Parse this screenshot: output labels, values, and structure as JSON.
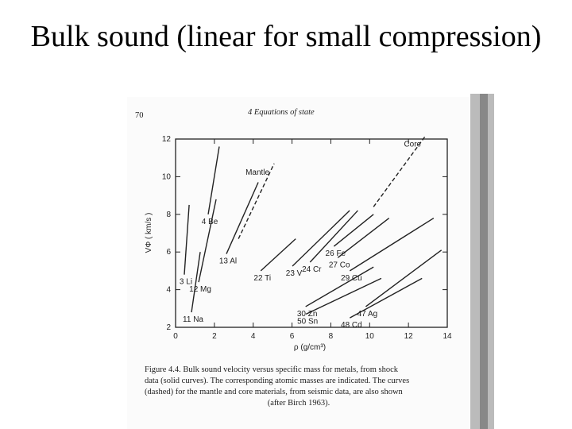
{
  "chart_data": {
    "type": "line",
    "title": "Bulk sound (linear for small compression)",
    "xlabel": "ρ (g/cm³)",
    "ylabel": "VΦ ( km/s )",
    "xlim": [
      0,
      14
    ],
    "xticks": [
      0,
      2,
      4,
      6,
      8,
      10,
      12,
      14
    ],
    "ylim": [
      2,
      12
    ],
    "yticks": [
      2,
      4,
      6,
      8,
      10,
      12
    ],
    "color": "#222222",
    "series": [
      {
        "name": "3 Li",
        "x": [
          0.45,
          0.7
        ],
        "values": [
          4.8,
          8.5
        ]
      },
      {
        "name": "11 Na",
        "x": [
          0.82,
          1.27
        ],
        "values": [
          2.8,
          6.0
        ]
      },
      {
        "name": "4 Be",
        "x": [
          1.68,
          2.25
        ],
        "values": [
          8.0,
          11.6
        ]
      },
      {
        "name": "12 Mg",
        "x": [
          1.19,
          2.09
        ],
        "values": [
          4.4,
          8.8
        ]
      },
      {
        "name": "13 Al",
        "x": [
          2.62,
          4.26
        ],
        "values": [
          5.9,
          9.7
        ]
      },
      {
        "name": "Mantle",
        "x": [
          3.24,
          5.08
        ],
        "values": [
          6.7,
          10.7
        ],
        "dashed": true
      },
      {
        "name": "22 Ti",
        "x": [
          4.39,
          6.19
        ],
        "values": [
          5.0,
          6.7
        ]
      },
      {
        "name": "23 V",
        "x": [
          6.02,
          8.97
        ],
        "values": [
          5.25,
          8.2
        ]
      },
      {
        "name": "24 Cr",
        "x": [
          6.93,
          9.39
        ],
        "values": [
          5.46,
          8.2
        ]
      },
      {
        "name": "26 Fe",
        "x": [
          8.16,
          10.2
        ],
        "values": [
          6.3,
          8.0
        ]
      },
      {
        "name": "27 Co",
        "x": [
          8.36,
          11.0
        ],
        "values": [
          5.7,
          7.8
        ]
      },
      {
        "name": "29 Cu",
        "x": [
          8.98,
          13.3
        ],
        "values": [
          5.0,
          7.8
        ]
      },
      {
        "name": "30 Zn",
        "x": [
          6.7,
          10.2
        ],
        "values": [
          3.1,
          5.2
        ]
      },
      {
        "name": "50 Sn",
        "x": [
          6.72,
          10.6
        ],
        "values": [
          2.7,
          4.6
        ]
      },
      {
        "name": "47 Ag",
        "x": [
          9.8,
          13.7
        ],
        "values": [
          3.1,
          6.1
        ]
      },
      {
        "name": "48 Cd",
        "x": [
          8.98,
          12.7
        ],
        "values": [
          2.5,
          4.6
        ]
      },
      {
        "name": "Core",
        "x": [
          10.2,
          12.9
        ],
        "values": [
          8.4,
          12.2
        ],
        "dashed": true
      }
    ]
  },
  "page_number": "70",
  "running_head": "4  Equations of state",
  "caption": [
    "Figure 4.4.  Bulk sound velocity versus specific mass for metals, from shock",
    "data (solid curves). The corresponding atomic masses are indicated. The curves",
    "(dashed) for the mantle and core materials, from seismic data, are also shown",
    "(after Birch 1963)."
  ]
}
